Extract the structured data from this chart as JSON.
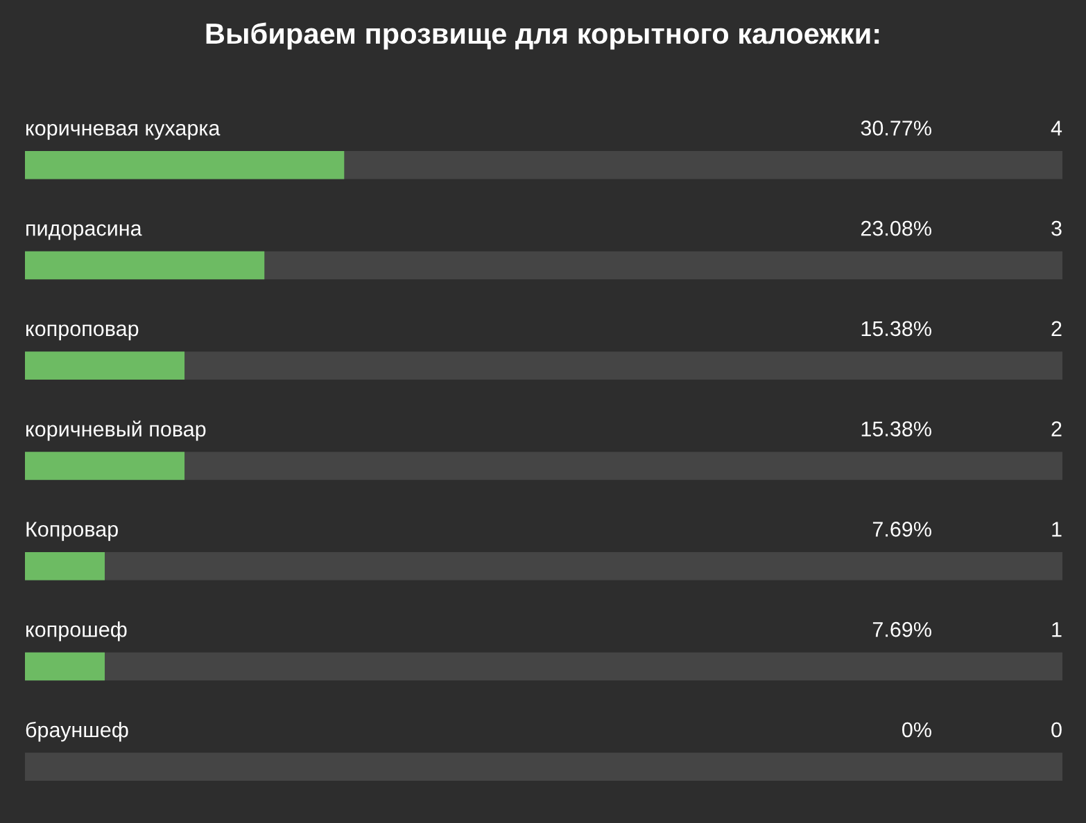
{
  "chart_data": {
    "type": "bar",
    "orientation": "horizontal",
    "title": "Выбираем прозвище для корытного калоежки:",
    "categories": [
      "коричневая кухарка",
      "пидорасина",
      "копроповар",
      "коричневый повар",
      "Копровар",
      "копрошеф",
      "брауншеф"
    ],
    "values": [
      30.77,
      23.08,
      15.38,
      15.38,
      7.69,
      7.69,
      0
    ],
    "value_labels": [
      "30.77%",
      "23.08%",
      "15.38%",
      "15.38%",
      "7.69%",
      "7.69%",
      "0%"
    ],
    "color": "#6dbb63",
    "xlim": [
      0,
      100
    ],
    "tick_labels": "y",
    "annotations": [
      "4",
      "3",
      "2",
      "2",
      "1",
      "1",
      "0"
    ]
  }
}
